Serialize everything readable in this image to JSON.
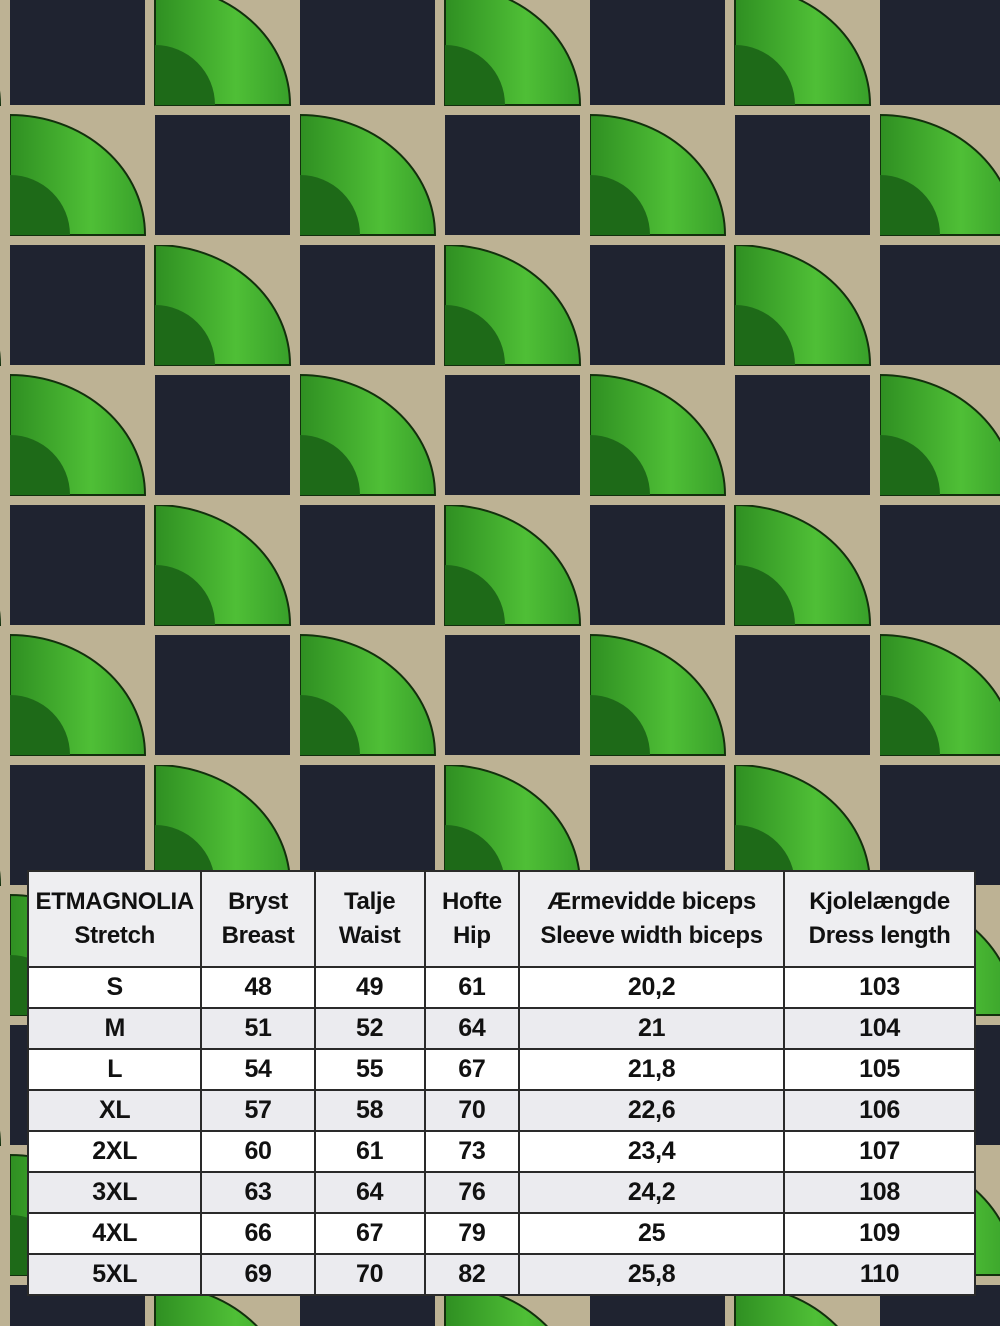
{
  "colors": {
    "fabric_dark": "#1f2330",
    "fabric_green": "#3fa82c",
    "fabric_beige": "#bdb294",
    "table_header_bg": "#eeeef1"
  },
  "table": {
    "headers": [
      [
        "ETMAGNOLIA",
        "Stretch"
      ],
      [
        "Bryst",
        "Breast"
      ],
      [
        "Talje",
        "Waist"
      ],
      [
        "Hofte",
        "Hip"
      ],
      [
        "Ærmevidde biceps",
        "Sleeve width biceps"
      ],
      [
        "Kjolelængde",
        "Dress length"
      ]
    ],
    "rows": [
      [
        "S",
        "48",
        "49",
        "61",
        "20,2",
        "103"
      ],
      [
        "M",
        "51",
        "52",
        "64",
        "21",
        "104"
      ],
      [
        "L",
        "54",
        "55",
        "67",
        "21,8",
        "105"
      ],
      [
        "XL",
        "57",
        "58",
        "70",
        "22,6",
        "106"
      ],
      [
        "2XL",
        "60",
        "61",
        "73",
        "23,4",
        "107"
      ],
      [
        "3XL",
        "63",
        "64",
        "76",
        "24,2",
        "108"
      ],
      [
        "4XL",
        "66",
        "67",
        "79",
        "25",
        "109"
      ],
      [
        "5XL",
        "69",
        "70",
        "82",
        "25,8",
        "110"
      ]
    ]
  }
}
